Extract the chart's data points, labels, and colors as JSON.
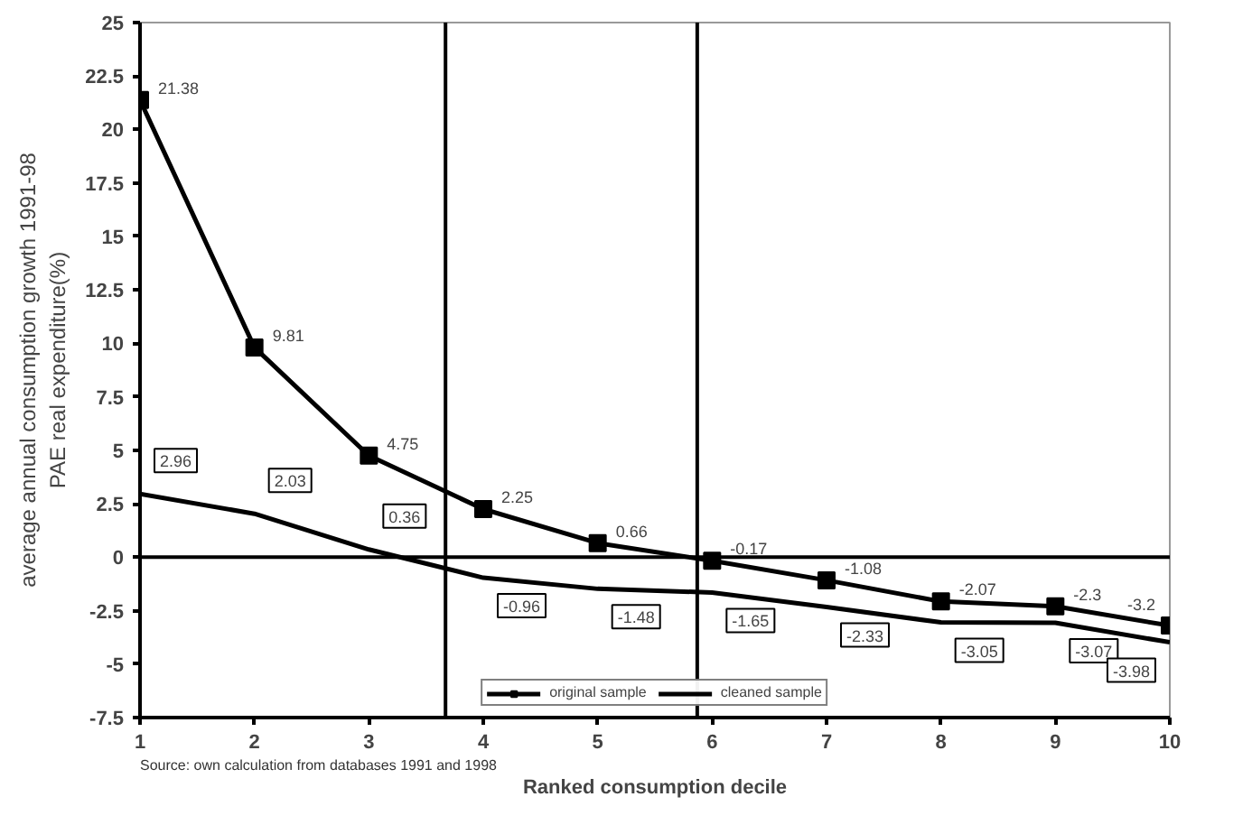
{
  "chart_data": {
    "type": "line",
    "xlabel": "Ranked consumption decile",
    "ylabel": "average annual consumption growth 1991-98 PAE real expenditure(%)",
    "x": [
      1,
      2,
      3,
      4,
      5,
      6,
      7,
      8,
      9,
      10
    ],
    "series": [
      {
        "name": "original sample",
        "color": "#000000",
        "marker": "square",
        "values": [
          21.38,
          9.81,
          4.75,
          2.25,
          0.66,
          -0.17,
          -1.08,
          -2.07,
          -2.3,
          -3.2
        ]
      },
      {
        "name": "cleaned sample",
        "color": "#000000",
        "marker": "none",
        "values": [
          2.96,
          2.03,
          0.36,
          -0.96,
          -1.48,
          -1.65,
          -2.33,
          -3.05,
          -3.07,
          -3.98
        ]
      }
    ],
    "xlim": [
      1,
      10
    ],
    "xticks": [
      1,
      2,
      3,
      4,
      5,
      6,
      7,
      8,
      9,
      10
    ],
    "ylim": [
      -7.5,
      25
    ],
    "yticks": [
      -7.5,
      -5,
      -2.5,
      0,
      2.5,
      5,
      7.5,
      10,
      12.5,
      15,
      17.5,
      20,
      22.5,
      25
    ],
    "ref_lines": [
      {
        "axis": "x",
        "value": 3.67
      },
      {
        "axis": "x",
        "value": 5.87
      },
      {
        "axis": "y",
        "value": 0
      }
    ],
    "annotations": [
      "Source: own calculation from databases 1991 and 1998"
    ],
    "data_labels": true,
    "grid": false,
    "legend": "bottom",
    "line_style": "solid"
  }
}
